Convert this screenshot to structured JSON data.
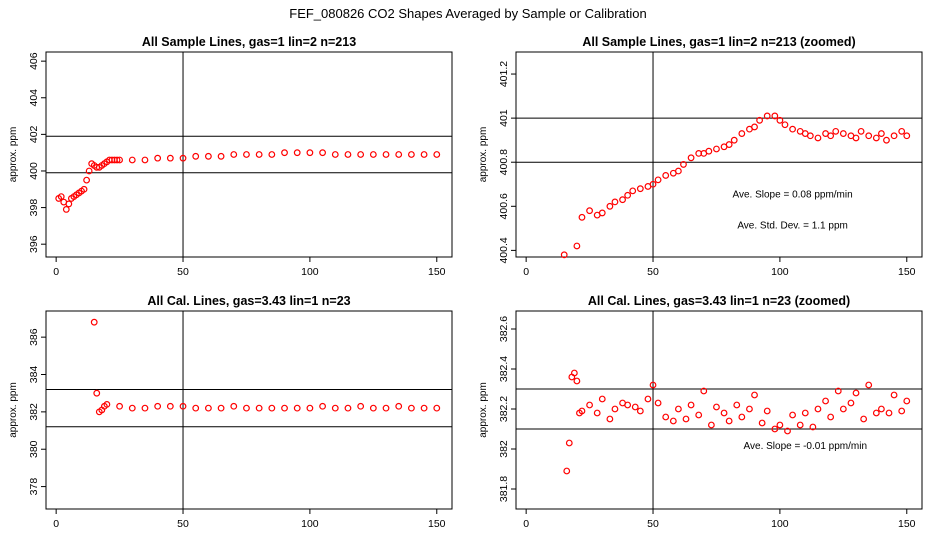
{
  "figure_title": "FEF_080826  CO2 Shapes Averaged by Sample or Calibration",
  "chart_data": [
    {
      "type": "scatter",
      "id": "p1",
      "title": "All Sample Lines, gas=1 lin=2 n=213",
      "ylabel": "approx. ppm",
      "xlabel": "",
      "xlim": [
        -4,
        156
      ],
      "ylim": [
        395.3,
        406.5
      ],
      "xticks": [
        0,
        50,
        100,
        150
      ],
      "xtick_labels": [
        "0",
        "50",
        "100",
        "150"
      ],
      "yticks": [
        396,
        398,
        400,
        402,
        404,
        406
      ],
      "ytick_labels": [
        "396",
        "398",
        "400",
        "402",
        "404",
        "406"
      ],
      "hlines": [
        399.9,
        401.9
      ],
      "vlines": [
        50
      ],
      "marker_color": "#ff0000",
      "points": {
        "x": [
          1,
          2,
          3,
          4,
          5,
          6,
          7,
          8,
          9,
          10,
          11,
          12,
          13,
          14,
          15,
          16,
          17,
          18,
          19,
          20,
          21,
          22,
          23,
          24,
          25,
          30,
          35,
          40,
          45,
          50,
          55,
          60,
          65,
          70,
          75,
          80,
          85,
          90,
          95,
          100,
          105,
          110,
          115,
          120,
          125,
          130,
          135,
          140,
          145,
          150
        ],
        "y": [
          398.5,
          398.6,
          398.3,
          397.9,
          398.2,
          398.5,
          398.6,
          398.7,
          398.8,
          398.9,
          399.0,
          399.5,
          400.0,
          400.4,
          400.3,
          400.2,
          400.2,
          400.3,
          400.4,
          400.5,
          400.6,
          400.6,
          400.6,
          400.6,
          400.6,
          400.6,
          400.6,
          400.7,
          400.7,
          400.7,
          400.8,
          400.8,
          400.8,
          400.9,
          400.9,
          400.9,
          400.9,
          401.0,
          401.0,
          401.0,
          401.0,
          400.9,
          400.9,
          400.9,
          400.9,
          400.9,
          400.9,
          400.9,
          400.9,
          400.9
        ]
      },
      "annotations": []
    },
    {
      "type": "scatter",
      "id": "p2",
      "title": "All Sample Lines, gas=1 lin=2 n=213 (zoomed)",
      "ylabel": "approx. ppm",
      "xlabel": "",
      "xlim": [
        -4,
        156
      ],
      "ylim": [
        400.37,
        401.3
      ],
      "xticks": [
        0,
        50,
        100,
        150
      ],
      "xtick_labels": [
        "0",
        "50",
        "100",
        "150"
      ],
      "yticks": [
        400.4,
        400.6,
        400.8,
        401.0,
        401.2
      ],
      "ytick_labels": [
        "400.4",
        "400.6",
        "400.8",
        "401",
        "401.2"
      ],
      "hlines": [
        400.8,
        401.0
      ],
      "vlines": [
        50
      ],
      "marker_color": "#ff0000",
      "points": {
        "x": [
          15,
          20,
          22,
          25,
          28,
          30,
          33,
          35,
          38,
          40,
          42,
          45,
          48,
          50,
          52,
          55,
          58,
          60,
          62,
          65,
          68,
          70,
          72,
          75,
          78,
          80,
          82,
          85,
          88,
          90,
          92,
          95,
          98,
          100,
          102,
          105,
          108,
          110,
          112,
          115,
          118,
          120,
          122,
          125,
          128,
          130,
          132,
          135,
          138,
          140,
          142,
          145,
          148,
          150
        ],
        "y": [
          400.38,
          400.42,
          400.55,
          400.58,
          400.56,
          400.57,
          400.6,
          400.62,
          400.63,
          400.65,
          400.67,
          400.68,
          400.69,
          400.7,
          400.72,
          400.74,
          400.75,
          400.76,
          400.79,
          400.82,
          400.84,
          400.84,
          400.85,
          400.86,
          400.87,
          400.88,
          400.9,
          400.93,
          400.95,
          400.96,
          400.99,
          401.01,
          401.01,
          400.99,
          400.97,
          400.95,
          400.94,
          400.93,
          400.92,
          400.91,
          400.93,
          400.92,
          400.94,
          400.93,
          400.92,
          400.91,
          400.94,
          400.92,
          400.91,
          400.93,
          400.9,
          400.92,
          400.94,
          400.92
        ]
      },
      "annotations": [
        {
          "text": "Ave. Slope =  0.08  ppm/min",
          "x": 105,
          "y": 400.64
        },
        {
          "text": "Ave. Std. Dev. =  1.1  ppm",
          "x": 105,
          "y": 400.5
        }
      ]
    },
    {
      "type": "scatter",
      "id": "p3",
      "title": "All Cal. Lines, gas=3.43 lin=1 n=23",
      "ylabel": "approx. ppm",
      "xlabel": "",
      "xlim": [
        -4,
        156
      ],
      "ylim": [
        376.8,
        387.4
      ],
      "xticks": [
        0,
        50,
        100,
        150
      ],
      "xtick_labels": [
        "0",
        "50",
        "100",
        "150"
      ],
      "yticks": [
        378,
        380,
        382,
        384,
        386
      ],
      "ytick_labels": [
        "378",
        "380",
        "382",
        "384",
        "386"
      ],
      "hlines": [
        381.2,
        383.2
      ],
      "vlines": [
        50
      ],
      "marker_color": "#ff0000",
      "points": {
        "x": [
          15,
          16,
          17,
          18,
          19,
          20,
          25,
          30,
          35,
          40,
          45,
          50,
          55,
          60,
          65,
          70,
          75,
          80,
          85,
          90,
          95,
          100,
          105,
          110,
          115,
          120,
          125,
          130,
          135,
          140,
          145,
          150
        ],
        "y": [
          386.8,
          383.0,
          382.0,
          382.1,
          382.3,
          382.4,
          382.3,
          382.2,
          382.2,
          382.3,
          382.3,
          382.3,
          382.2,
          382.2,
          382.2,
          382.3,
          382.2,
          382.2,
          382.2,
          382.2,
          382.2,
          382.2,
          382.3,
          382.2,
          382.2,
          382.3,
          382.2,
          382.2,
          382.3,
          382.2,
          382.2,
          382.2
        ]
      },
      "annotations": []
    },
    {
      "type": "scatter",
      "id": "p4",
      "title": "All Cal. Lines, gas=3.43 lin=1 n=23 (zoomed)",
      "ylabel": "approx. ppm",
      "xlabel": "",
      "xlim": [
        -4,
        156
      ],
      "ylim": [
        381.7,
        382.69
      ],
      "xticks": [
        0,
        50,
        100,
        150
      ],
      "xtick_labels": [
        "0",
        "50",
        "100",
        "150"
      ],
      "yticks": [
        381.8,
        382.0,
        382.2,
        382.4,
        382.6
      ],
      "ytick_labels": [
        "381.8",
        "382",
        "382.2",
        "382.4",
        "382.6"
      ],
      "hlines": [
        382.1,
        382.3
      ],
      "vlines": [
        50
      ],
      "marker_color": "#ff0000",
      "points": {
        "x": [
          16,
          17,
          18,
          19,
          20,
          21,
          22,
          25,
          28,
          30,
          33,
          35,
          38,
          40,
          43,
          45,
          48,
          50,
          52,
          55,
          58,
          60,
          63,
          65,
          68,
          70,
          73,
          75,
          78,
          80,
          83,
          85,
          88,
          90,
          93,
          95,
          98,
          100,
          103,
          105,
          108,
          110,
          113,
          115,
          118,
          120,
          123,
          125,
          128,
          130,
          133,
          135,
          138,
          140,
          143,
          145,
          148,
          150
        ],
        "y": [
          381.89,
          382.03,
          382.36,
          382.38,
          382.34,
          382.18,
          382.19,
          382.22,
          382.18,
          382.25,
          382.15,
          382.2,
          382.23,
          382.22,
          382.21,
          382.19,
          382.25,
          382.32,
          382.23,
          382.16,
          382.14,
          382.2,
          382.15,
          382.22,
          382.17,
          382.29,
          382.12,
          382.21,
          382.18,
          382.14,
          382.22,
          382.16,
          382.2,
          382.27,
          382.13,
          382.19,
          382.1,
          382.12,
          382.09,
          382.17,
          382.12,
          382.18,
          382.11,
          382.2,
          382.24,
          382.16,
          382.29,
          382.2,
          382.23,
          382.28,
          382.15,
          382.32,
          382.18,
          382.2,
          382.18,
          382.27,
          382.19,
          382.24
        ],
        "extra_note": ""
      },
      "annotations": [
        {
          "text": "Ave. Slope =  -0.01  ppm/min",
          "x": 110,
          "y": 382.0
        }
      ]
    }
  ]
}
